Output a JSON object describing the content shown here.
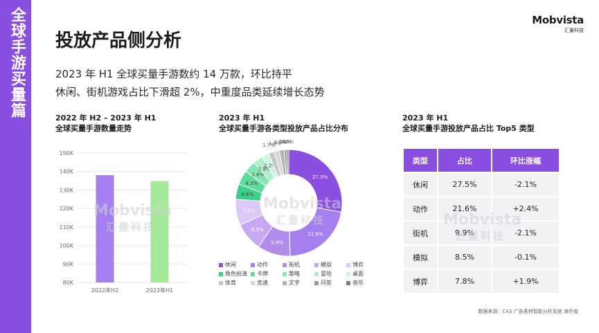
{
  "sidebar": {
    "title": "全球手游买量篇"
  },
  "brand": {
    "name": "Mobvista",
    "subname": "汇量科技"
  },
  "page": {
    "title": "投放产品侧分析",
    "summary_line1": "2023 年 H1 全球买量手游数约 14 万款，环比持平",
    "summary_line2": "休闲、街机游戏占比下滑超 2%，中重度品类延续增长态势"
  },
  "watermark": {
    "text": "Mobvista",
    "subtext": "汇量科技"
  },
  "colors": {
    "accent": "#8a4fe0",
    "bar1": "#a57ff0",
    "bar2": "#a5e89a"
  },
  "chart_data": [
    {
      "type": "bar",
      "title_line1": "2022 年 H2 – 2023 年 H1",
      "title_line2": "全球买量手游数量走势",
      "categories": [
        "2022年H2",
        "2023年H1"
      ],
      "values": [
        138000,
        134800
      ],
      "ylim": [
        80000,
        150000
      ],
      "yticks": [
        "80K",
        "90K",
        "100K",
        "110K",
        "120K",
        "130K",
        "140K",
        "150K"
      ],
      "grid": true,
      "bar_colors": [
        "#a57ff0",
        "#a5e89a"
      ]
    },
    {
      "type": "pie",
      "title_line1": "2023 年 H1",
      "title_line2": "全球买量手游各类型投放产品占比分布",
      "labels": [
        "休闲",
        "动作",
        "街机",
        "模拟",
        "博弈",
        "角色扮演",
        "卡牌",
        "策略",
        "冒险",
        "桌面",
        "体育",
        "竞速",
        "文字",
        "问答",
        "音乐"
      ],
      "values": [
        27.5,
        21.6,
        9.9,
        8.5,
        7.8,
        4.6,
        4.3,
        3.6,
        2.9,
        2.2,
        1.7,
        1.6,
        1.4,
        0.8,
        0.6
      ],
      "value_labels": [
        "27.5%",
        "21.6%",
        "9.9%",
        "8.5%",
        "7.8%",
        "4.6%",
        "4.3%",
        "3.6%",
        "2.9%",
        "2.2%",
        "1.7%",
        "1.6%",
        "1.4%",
        "0.8%",
        "0.6%"
      ],
      "colors": [
        "#8a4fe0",
        "#a57ff0",
        "#b18cec",
        "#c7a8f3",
        "#ddc8f8",
        "#39d18a",
        "#5cdc9b",
        "#86e6b3",
        "#aeeec9",
        "#d0f5de",
        "#c6c6c6",
        "#d8d8d8",
        "#b3b3b3",
        "#9a9a9a",
        "#7d7d7d"
      ],
      "legend_position": "bottom"
    },
    {
      "type": "table",
      "title_line1": "2023 年 H1",
      "title_line2": "全球买量手游投放产品占比 Top5 类型",
      "columns": [
        "类型",
        "占比",
        "环比涨幅"
      ],
      "rows": [
        [
          "休闲",
          "27.5%",
          "-2.1%"
        ],
        [
          "动作",
          "21.6%",
          "+2.4%"
        ],
        [
          "街机",
          "9.9%",
          "-2.1%"
        ],
        [
          "模拟",
          "8.5%",
          "-0.1%"
        ],
        [
          "博弈",
          "7.8%",
          "+1.9%"
        ]
      ]
    }
  ],
  "footer": {
    "source": "数据来源：CAS 广告素材智能分析系统 海外版"
  }
}
